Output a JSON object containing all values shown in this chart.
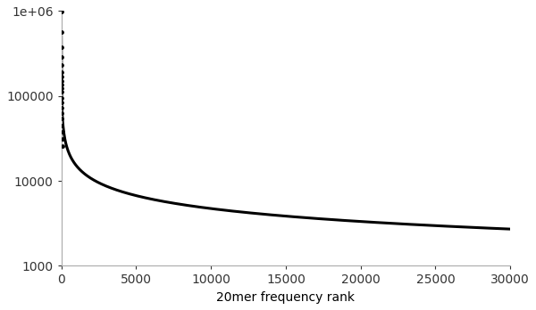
{
  "title": "",
  "xlabel": "20mer frequency rank",
  "ylabel": "",
  "xlim": [
    0,
    30000
  ],
  "ylim": [
    1000,
    1000000
  ],
  "x_ticks": [
    0,
    5000,
    10000,
    15000,
    20000,
    25000,
    30000
  ],
  "y_ticks": [
    1000,
    10000,
    100000,
    1000000
  ],
  "curve_color": "#000000",
  "scatter_color": "#000000",
  "background_color": "#ffffff",
  "line_width": 2.2,
  "scatter_size": 6,
  "num_curve_points": 1000,
  "curve_start": 1,
  "curve_end": 30000,
  "A": 500000,
  "b": 0.506,
  "scatter_ranks": [
    1,
    2,
    3,
    4,
    5,
    6,
    7,
    8,
    9,
    10,
    12,
    15,
    18,
    22,
    28,
    35,
    45,
    60,
    80,
    110
  ],
  "scatter_noise": [
    1.95,
    1.6,
    1.3,
    1.15,
    1.05,
    0.95,
    0.9,
    0.85,
    0.82,
    0.8,
    0.78,
    0.75,
    0.72,
    0.7,
    0.68,
    0.65,
    0.62,
    0.6,
    0.58,
    0.56
  ]
}
